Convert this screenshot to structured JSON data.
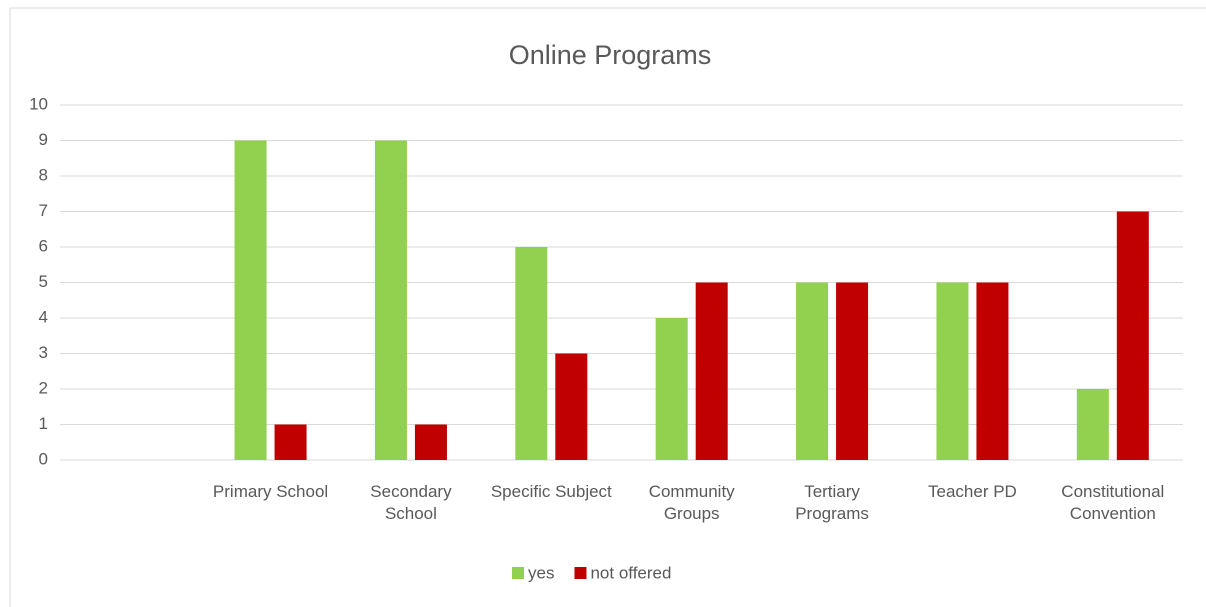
{
  "chart_data": {
    "type": "bar",
    "title": "Online Programs",
    "categories": [
      null,
      "Primary School",
      "Secondary School",
      "Specific Subject",
      "Community Groups",
      "Tertiary Programs",
      "Teacher PD",
      "Constitutional Convention"
    ],
    "series": [
      {
        "name": "yes",
        "color": "#92d050",
        "values": [
          null,
          9,
          9,
          6,
          4,
          5,
          5,
          2
        ]
      },
      {
        "name": "not offered",
        "color": "#c00000",
        "values": [
          null,
          1,
          1,
          3,
          5,
          5,
          5,
          7
        ]
      }
    ],
    "ylim": [
      0,
      10
    ],
    "yticks": [
      0,
      1,
      2,
      3,
      4,
      5,
      6,
      7,
      8,
      9,
      10
    ],
    "grid": true,
    "legend": "bottom"
  }
}
